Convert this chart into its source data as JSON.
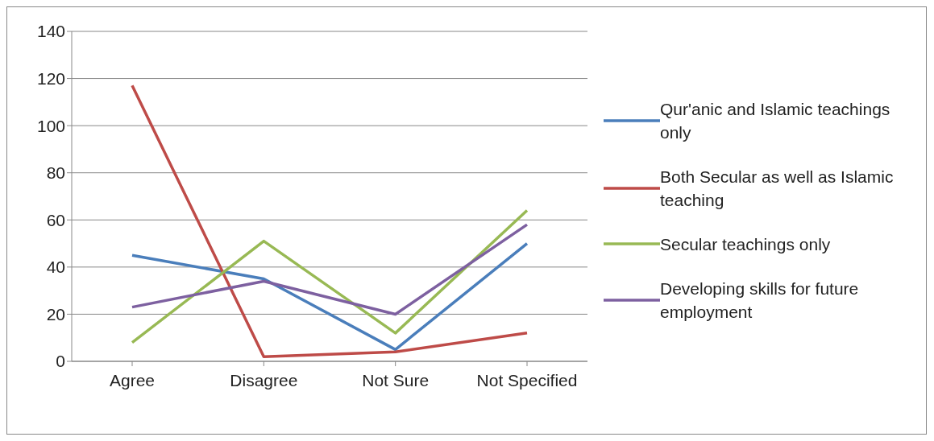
{
  "chart_data": {
    "type": "line",
    "categories": [
      "Agree",
      "Disagree",
      "Not Sure",
      "Not Specified"
    ],
    "series": [
      {
        "name": "Qur'anic and Islamic teachings only",
        "color": "#4a7ebb",
        "values": [
          45,
          35,
          5,
          50
        ]
      },
      {
        "name": "Both Secular as well as Islamic teaching",
        "color": "#be4b48",
        "values": [
          117,
          2,
          4,
          12
        ]
      },
      {
        "name": "Secular teachings only",
        "color": "#98b954",
        "values": [
          8,
          51,
          12,
          64
        ]
      },
      {
        "name": "Developing skills for future employment",
        "color": "#7d60a0",
        "values": [
          23,
          34,
          20,
          58
        ]
      }
    ],
    "ylim": [
      0,
      140
    ],
    "yticks": [
      0,
      20,
      40,
      60,
      80,
      100,
      120,
      140
    ],
    "grid": "y",
    "legend": "right",
    "marker": "none",
    "line_style": "solid"
  }
}
